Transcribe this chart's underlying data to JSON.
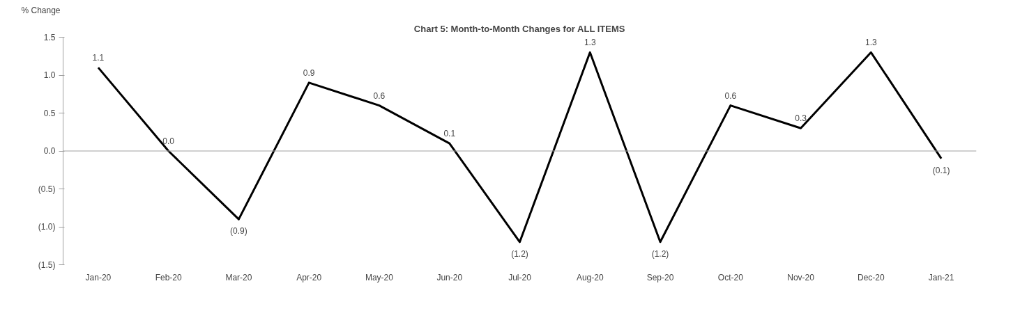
{
  "chart_data": {
    "type": "line",
    "title": "Chart 5: Month-to-Month Changes for ALL ITEMS",
    "ylabel": "% Change",
    "categories": [
      "Jan-20",
      "Feb-20",
      "Mar-20",
      "Apr-20",
      "May-20",
      "Jun-20",
      "Jul-20",
      "Aug-20",
      "Sep-20",
      "Oct-20",
      "Nov-20",
      "Dec-20",
      "Jan-21"
    ],
    "series": [
      {
        "color": "#000000",
        "values": [
          1.1,
          0.0,
          -0.9,
          0.9,
          0.6,
          0.1,
          -1.2,
          1.3,
          -1.2,
          0.6,
          0.3,
          1.3,
          -0.1
        ],
        "value_labels": [
          "1.1",
          "0.0",
          "(0.9)",
          "0.9",
          "0.6",
          "0.1",
          "(1.2)",
          "1.3",
          "(1.2)",
          "0.6",
          "0.3",
          "1.3",
          "(0.1)"
        ]
      }
    ],
    "ylim": [
      -1.5,
      1.5
    ],
    "yticks": [
      {
        "value": -1.5,
        "label": "(1.5)"
      },
      {
        "value": -1.0,
        "label": "(1.0)"
      },
      {
        "value": -0.5,
        "label": "(0.5)"
      },
      {
        "value": 0,
        "label": "0.0"
      },
      {
        "value": 0.5,
        "label": "0.5"
      },
      {
        "value": 1.0,
        "label": "1.0"
      },
      {
        "value": 1.5,
        "label": "1.5"
      }
    ],
    "ref_lines": [
      {
        "axis": "y",
        "value": 0,
        "color": "#a0a0a0"
      }
    ],
    "grid": false,
    "marker": "none",
    "line_style": "solid"
  }
}
